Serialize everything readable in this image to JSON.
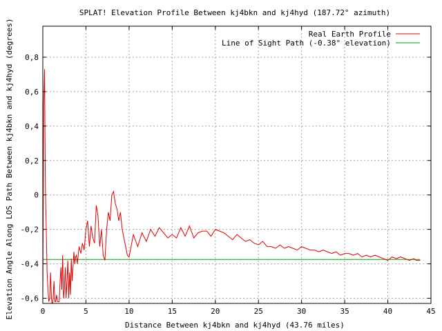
{
  "chart_data": {
    "type": "line",
    "title": "SPLAT! Elevation Profile Between kj4bkn and kj4hyd (187.72° azimuth)",
    "xlabel": "Distance Between kj4bkn and kj4hyd (43.76 miles)",
    "ylabel": "Elevation Angle Along LOS Path Between kj4bkn and kj4hyd (degrees)",
    "xlim": [
      0,
      45
    ],
    "ylim": [
      -0.63,
      0.98
    ],
    "xticks": [
      0,
      5,
      10,
      15,
      20,
      25,
      30,
      35,
      40,
      45
    ],
    "xtick_labels": [
      "0",
      "5",
      "10",
      "15",
      "20",
      "25",
      "30",
      "35",
      "40",
      "45"
    ],
    "yticks": [
      -0.6,
      -0.4,
      -0.2,
      0,
      0.2,
      0.4,
      0.6,
      0.8
    ],
    "ytick_labels": [
      "-0,6",
      "-0,4",
      "-0,2",
      "0",
      "0,2",
      "0,4",
      "0,6",
      "0,8"
    ],
    "grid": true,
    "legend_position": "top-right",
    "series": [
      {
        "name": "Real Earth Profile",
        "color": "#dd0000",
        "x": [
          0.0,
          0.1,
          0.2,
          0.3,
          0.4,
          0.5,
          0.6,
          0.7,
          0.8,
          0.9,
          1.0,
          1.1,
          1.2,
          1.3,
          1.4,
          1.5,
          1.6,
          1.7,
          1.8,
          1.9,
          2.0,
          2.1,
          2.2,
          2.3,
          2.4,
          2.5,
          2.6,
          2.7,
          2.8,
          2.9,
          3.0,
          3.1,
          3.2,
          3.3,
          3.4,
          3.5,
          3.6,
          3.7,
          3.8,
          3.9,
          4.0,
          4.2,
          4.4,
          4.6,
          4.8,
          5.0,
          5.2,
          5.4,
          5.6,
          5.8,
          6.0,
          6.2,
          6.4,
          6.6,
          6.8,
          7.0,
          7.2,
          7.4,
          7.6,
          7.8,
          8.0,
          8.2,
          8.4,
          8.6,
          8.8,
          9.0,
          9.2,
          9.4,
          9.6,
          9.8,
          10.0,
          10.5,
          11.0,
          11.5,
          12.0,
          12.5,
          13.0,
          13.5,
          14.0,
          14.5,
          15.0,
          15.5,
          16.0,
          16.5,
          17.0,
          17.5,
          18.0,
          18.5,
          19.0,
          19.5,
          20.0,
          20.5,
          21.0,
          21.5,
          22.0,
          22.5,
          23.0,
          23.5,
          24.0,
          24.5,
          25.0,
          25.5,
          26.0,
          26.5,
          27.0,
          27.5,
          28.0,
          28.5,
          29.0,
          29.5,
          30.0,
          30.5,
          31.0,
          31.5,
          32.0,
          32.5,
          33.0,
          33.5,
          34.0,
          34.5,
          35.0,
          35.5,
          36.0,
          36.5,
          37.0,
          37.5,
          38.0,
          38.5,
          39.0,
          39.5,
          40.0,
          40.5,
          41.0,
          41.5,
          42.0,
          42.5,
          43.0,
          43.3,
          43.5,
          43.76
        ],
        "y": [
          -0.62,
          0.52,
          0.73,
          0.05,
          -0.2,
          -0.45,
          -0.55,
          -0.62,
          -0.6,
          -0.45,
          -0.6,
          -0.65,
          -0.6,
          -0.5,
          -0.62,
          -0.62,
          -0.58,
          -0.62,
          -0.62,
          -0.62,
          -0.5,
          -0.42,
          -0.55,
          -0.35,
          -0.6,
          -0.55,
          -0.42,
          -0.6,
          -0.5,
          -0.38,
          -0.6,
          -0.45,
          -0.58,
          -0.37,
          -0.5,
          -0.42,
          -0.33,
          -0.4,
          -0.36,
          -0.35,
          -0.4,
          -0.3,
          -0.34,
          -0.28,
          -0.32,
          -0.2,
          -0.15,
          -0.3,
          -0.18,
          -0.25,
          -0.28,
          -0.06,
          -0.12,
          -0.3,
          -0.2,
          -0.35,
          -0.38,
          -0.2,
          -0.1,
          -0.15,
          0.0,
          0.02,
          -0.05,
          -0.08,
          -0.15,
          -0.1,
          -0.2,
          -0.25,
          -0.3,
          -0.35,
          -0.36,
          -0.23,
          -0.3,
          -0.22,
          -0.27,
          -0.2,
          -0.24,
          -0.19,
          -0.22,
          -0.25,
          -0.23,
          -0.25,
          -0.19,
          -0.24,
          -0.18,
          -0.25,
          -0.22,
          -0.21,
          -0.21,
          -0.24,
          -0.2,
          -0.21,
          -0.22,
          -0.24,
          -0.26,
          -0.23,
          -0.25,
          -0.27,
          -0.26,
          -0.28,
          -0.29,
          -0.27,
          -0.3,
          -0.3,
          -0.31,
          -0.29,
          -0.31,
          -0.3,
          -0.31,
          -0.32,
          -0.3,
          -0.31,
          -0.32,
          -0.32,
          -0.33,
          -0.32,
          -0.33,
          -0.34,
          -0.33,
          -0.35,
          -0.34,
          -0.34,
          -0.35,
          -0.34,
          -0.36,
          -0.35,
          -0.36,
          -0.35,
          -0.36,
          -0.37,
          -0.38,
          -0.36,
          -0.37,
          -0.36,
          -0.37,
          -0.38,
          -0.37,
          -0.38,
          -0.38,
          -0.38
        ]
      },
      {
        "name": "Line of Sight Path (-0.38° elevation)",
        "color": "#00a000",
        "x": [
          0,
          43.76
        ],
        "y": [
          -0.375,
          -0.375
        ]
      }
    ]
  }
}
